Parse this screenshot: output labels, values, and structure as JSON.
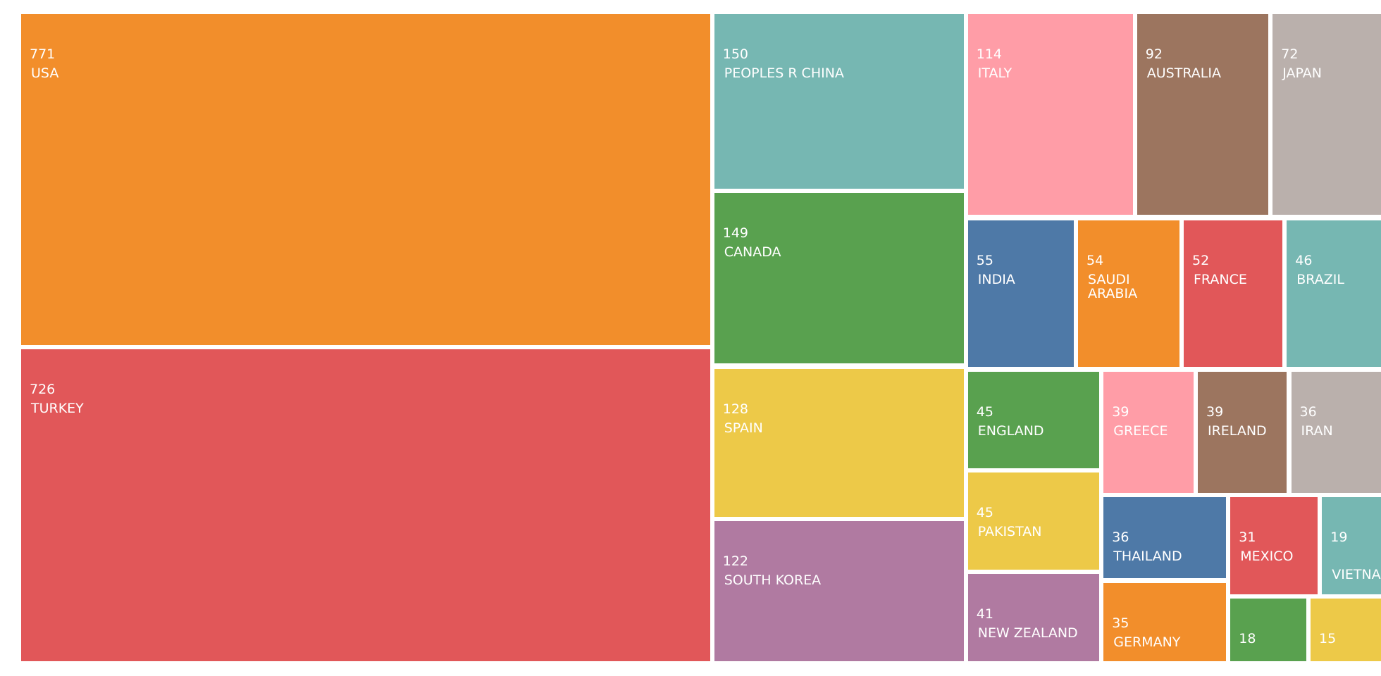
{
  "chart_data": {
    "type": "treemap",
    "categories": [
      "USA",
      "TURKEY",
      "PEOPLES R CHINA",
      "CANADA",
      "SPAIN",
      "SOUTH KOREA",
      "ITALY",
      "AUSTRALIA",
      "JAPAN",
      "INDIA",
      "SAUDI ARABIA",
      "FRANCE",
      "BRAZIL",
      "ENGLAND",
      "PAKISTAN",
      "NEW ZEALAND",
      "GREECE",
      "IRELAND",
      "IRAN",
      "THAILAND",
      "GERMANY",
      "MEXICO",
      "VIETNAM",
      null,
      null
    ],
    "values": [
      771,
      726,
      150,
      149,
      128,
      122,
      114,
      92,
      72,
      55,
      54,
      52,
      46,
      45,
      45,
      41,
      39,
      39,
      36,
      36,
      35,
      31,
      19,
      18,
      15
    ],
    "colors": [
      "#f28e2b",
      "#e15759",
      "#76b7b2",
      "#59a14f",
      "#edc948",
      "#b07aa1",
      "#ff9da7",
      "#9c755f",
      "#bab0ac",
      "#4e79a7",
      "#f28e2b",
      "#e15759",
      "#76b7b2",
      "#59a14f",
      "#edc948",
      "#b07aa1",
      "#ff9da7",
      "#9c755f",
      "#bab0ac",
      "#4e79a7",
      "#f28e2b",
      "#e15759",
      "#76b7b2",
      "#59a14f",
      "#edc948"
    ]
  }
}
